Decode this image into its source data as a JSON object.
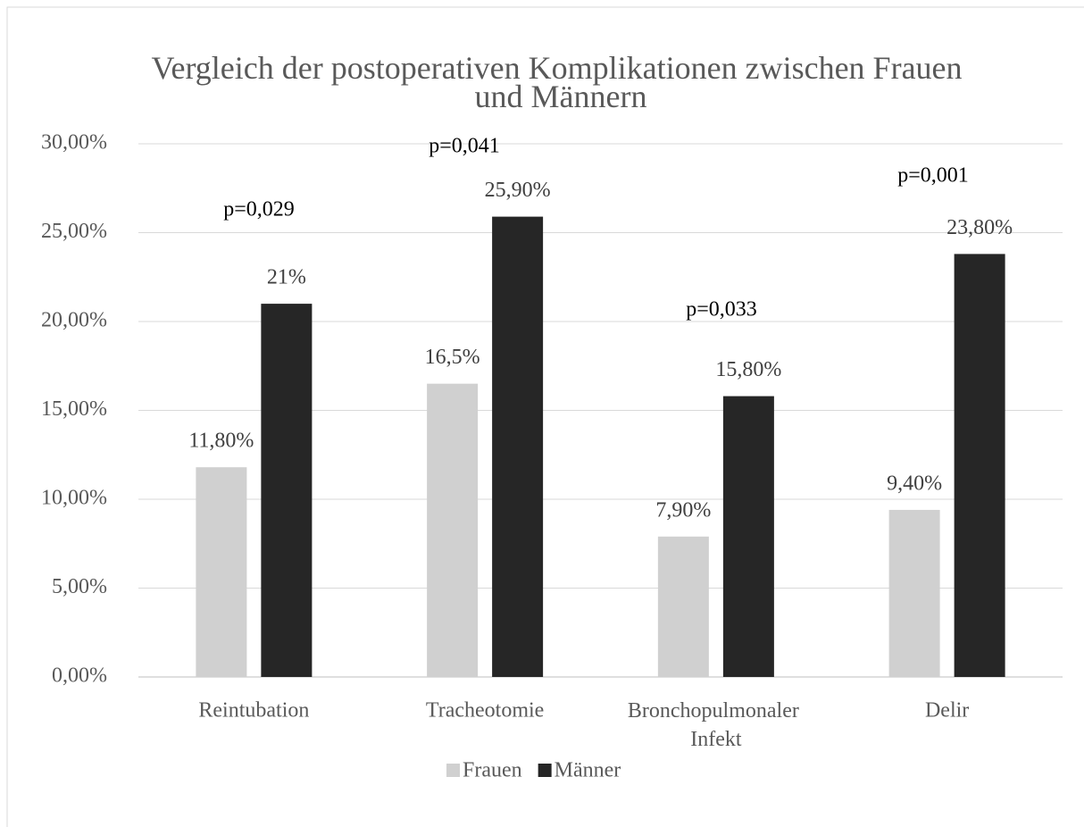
{
  "chart_data": {
    "type": "bar",
    "title": "Vergleich der postoperativen Komplikationen zwischen Frauen und Männern",
    "categories": [
      "Reintubation",
      "Tracheotomie",
      "Bronchopulmonaler Infekt",
      "Delir"
    ],
    "series": [
      {
        "name": "Frauen",
        "color": "#d0d0d0",
        "values": [
          11.8,
          16.5,
          7.9,
          9.4
        ],
        "value_labels": [
          "11,80%",
          "16,5%",
          "7,90%",
          "9,40%"
        ]
      },
      {
        "name": "Männer",
        "color": "#262626",
        "values": [
          21,
          25.9,
          15.8,
          23.8
        ],
        "value_labels": [
          "21%",
          "25,90%",
          "15,80%",
          "23,80%"
        ]
      }
    ],
    "annotations": [
      "p=0,029",
      "p=0,041",
      "p=0,033",
      "p=0,001"
    ],
    "ylim": [
      0,
      30
    ],
    "yticks": [
      {
        "value": 0,
        "label": "0,00%"
      },
      {
        "value": 5,
        "label": "5,00%"
      },
      {
        "value": 10,
        "label": "10,00%"
      },
      {
        "value": 15,
        "label": "15,00%"
      },
      {
        "value": 20,
        "label": "20,00%"
      },
      {
        "value": 25,
        "label": "25,00%"
      },
      {
        "value": 30,
        "label": "30,00%"
      }
    ],
    "grid": true,
    "legend": "bottom"
  }
}
